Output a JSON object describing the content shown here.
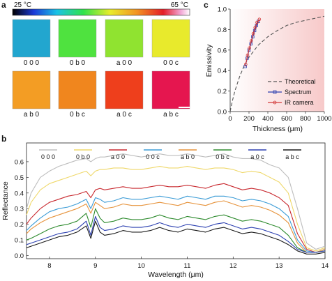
{
  "panel_a": {
    "label": "a",
    "colorbar": {
      "min_label": "25 °C",
      "max_label": "65 °C"
    },
    "samples": [
      {
        "code": "0 0 0",
        "color": "#22a6cf"
      },
      {
        "code": "0 b 0",
        "color": "#4fe23f"
      },
      {
        "code": "a 0 0",
        "color": "#90e330"
      },
      {
        "code": "0 0 c",
        "color": "#e8ea2c"
      },
      {
        "code": "a b 0",
        "color": "#f39d24"
      },
      {
        "code": "0 b c",
        "color": "#f0861e"
      },
      {
        "code": "a 0 c",
        "color": "#ee3f1c"
      },
      {
        "code": "a b c",
        "color": "#e5164f"
      }
    ]
  },
  "chart_data": [
    {
      "panel": "c",
      "type": "line",
      "xlabel": "Thickness (μm)",
      "ylabel": "Emissivity",
      "xlim": [
        0,
        1000
      ],
      "ylim": [
        0,
        1.0
      ],
      "xticks": [
        "0",
        "200",
        "400",
        "600",
        "800",
        "1000"
      ],
      "yticks": [
        "0.0",
        "0.2",
        "0.4",
        "0.6",
        "0.8",
        "1.0"
      ],
      "legend_position": "bottom-right",
      "series": [
        {
          "name": "Theoretical",
          "color": "#555555",
          "style": "dashed",
          "x": [
            0,
            25,
            50,
            100,
            150,
            200,
            300,
            400,
            500,
            600,
            700,
            800,
            900,
            1000
          ],
          "y": [
            0,
            0.11,
            0.2,
            0.34,
            0.45,
            0.53,
            0.65,
            0.73,
            0.79,
            0.84,
            0.87,
            0.89,
            0.91,
            0.93
          ]
        },
        {
          "name": "Spectrum",
          "color": "#2b3fb0",
          "marker": "square",
          "x": [
            160,
            180,
            200,
            220,
            240,
            260,
            280,
            300
          ],
          "y": [
            0.44,
            0.52,
            0.6,
            0.66,
            0.73,
            0.79,
            0.84,
            0.88
          ]
        },
        {
          "name": "IR camera",
          "color": "#d23a3a",
          "marker": "circle",
          "x": [
            165,
            185,
            205,
            225,
            245,
            265,
            285,
            310
          ],
          "y": [
            0.46,
            0.55,
            0.62,
            0.69,
            0.76,
            0.82,
            0.87,
            0.9
          ]
        }
      ]
    },
    {
      "panel": "b",
      "type": "line",
      "xlabel": "Wavelength (μm)",
      "ylabel": "Reflectance",
      "xlim": [
        7.5,
        14
      ],
      "ylim": [
        -0.02,
        0.72
      ],
      "xticks": [
        "8",
        "9",
        "10",
        "11",
        "12",
        "13",
        "14"
      ],
      "yticks": [
        "0.0",
        "0.1",
        "0.2",
        "0.3",
        "0.4",
        "0.5",
        "0.6"
      ],
      "legend_position": "top",
      "x": [
        7.5,
        7.6,
        7.8,
        8.0,
        8.2,
        8.4,
        8.6,
        8.8,
        8.9,
        9.0,
        9.1,
        9.2,
        9.4,
        9.6,
        9.8,
        10.0,
        10.2,
        10.4,
        10.6,
        10.8,
        11.0,
        11.2,
        11.4,
        11.6,
        11.8,
        12.0,
        12.2,
        12.4,
        12.6,
        12.8,
        13.0,
        13.2,
        13.4,
        13.6,
        13.8,
        14.0
      ],
      "series": [
        {
          "name": "0 0 0",
          "color": "#bdbdbd",
          "values": [
            0.3,
            0.4,
            0.5,
            0.54,
            0.57,
            0.59,
            0.61,
            0.62,
            0.6,
            0.62,
            0.63,
            0.63,
            0.64,
            0.65,
            0.64,
            0.63,
            0.64,
            0.65,
            0.64,
            0.64,
            0.65,
            0.64,
            0.63,
            0.64,
            0.65,
            0.63,
            0.62,
            0.62,
            0.61,
            0.58,
            0.56,
            0.5,
            0.3,
            0.08,
            0.04,
            0.06
          ]
        },
        {
          "name": "0 b 0",
          "color": "#efd86a",
          "values": [
            0.26,
            0.34,
            0.42,
            0.46,
            0.48,
            0.5,
            0.52,
            0.54,
            0.51,
            0.54,
            0.55,
            0.55,
            0.56,
            0.56,
            0.55,
            0.55,
            0.56,
            0.57,
            0.56,
            0.56,
            0.57,
            0.56,
            0.55,
            0.56,
            0.56,
            0.55,
            0.53,
            0.54,
            0.53,
            0.5,
            0.47,
            0.4,
            0.2,
            0.05,
            0.03,
            0.05
          ]
        },
        {
          "name": "a 0 0",
          "color": "#c8282e",
          "values": [
            0.2,
            0.24,
            0.3,
            0.34,
            0.36,
            0.38,
            0.39,
            0.41,
            0.37,
            0.42,
            0.43,
            0.42,
            0.43,
            0.44,
            0.43,
            0.43,
            0.44,
            0.45,
            0.44,
            0.44,
            0.45,
            0.44,
            0.43,
            0.45,
            0.46,
            0.44,
            0.42,
            0.43,
            0.42,
            0.4,
            0.37,
            0.32,
            0.14,
            0.04,
            0.02,
            0.04
          ]
        },
        {
          "name": "0 0 c",
          "color": "#3a9bd6",
          "values": [
            0.16,
            0.19,
            0.24,
            0.28,
            0.3,
            0.31,
            0.33,
            0.36,
            0.3,
            0.37,
            0.36,
            0.34,
            0.35,
            0.37,
            0.36,
            0.36,
            0.37,
            0.38,
            0.37,
            0.36,
            0.38,
            0.37,
            0.36,
            0.38,
            0.38,
            0.37,
            0.35,
            0.36,
            0.35,
            0.33,
            0.3,
            0.25,
            0.1,
            0.03,
            0.02,
            0.04
          ]
        },
        {
          "name": "a b 0",
          "color": "#e6923a",
          "values": [
            0.14,
            0.17,
            0.21,
            0.24,
            0.26,
            0.28,
            0.3,
            0.33,
            0.27,
            0.34,
            0.32,
            0.3,
            0.31,
            0.33,
            0.32,
            0.32,
            0.33,
            0.34,
            0.33,
            0.32,
            0.34,
            0.33,
            0.32,
            0.34,
            0.35,
            0.33,
            0.31,
            0.32,
            0.31,
            0.29,
            0.26,
            0.21,
            0.08,
            0.02,
            0.02,
            0.04
          ]
        },
        {
          "name": "0 b c",
          "color": "#2e8b2e",
          "values": [
            0.1,
            0.11,
            0.14,
            0.17,
            0.19,
            0.2,
            0.22,
            0.27,
            0.18,
            0.3,
            0.24,
            0.21,
            0.22,
            0.24,
            0.23,
            0.23,
            0.24,
            0.26,
            0.24,
            0.23,
            0.25,
            0.24,
            0.23,
            0.25,
            0.26,
            0.24,
            0.22,
            0.23,
            0.22,
            0.2,
            0.18,
            0.13,
            0.05,
            0.02,
            0.02,
            0.03
          ]
        },
        {
          "name": "a 0 c",
          "color": "#2b3fb0",
          "values": [
            0.07,
            0.08,
            0.1,
            0.12,
            0.14,
            0.15,
            0.17,
            0.22,
            0.13,
            0.25,
            0.18,
            0.16,
            0.17,
            0.19,
            0.18,
            0.18,
            0.19,
            0.21,
            0.19,
            0.18,
            0.2,
            0.19,
            0.18,
            0.2,
            0.21,
            0.19,
            0.17,
            0.18,
            0.17,
            0.15,
            0.13,
            0.09,
            0.04,
            0.02,
            0.02,
            0.03
          ]
        },
        {
          "name": "a b c",
          "color": "#1a1a1a",
          "values": [
            0.05,
            0.06,
            0.08,
            0.1,
            0.12,
            0.13,
            0.15,
            0.19,
            0.11,
            0.22,
            0.15,
            0.13,
            0.14,
            0.16,
            0.15,
            0.15,
            0.16,
            0.18,
            0.16,
            0.15,
            0.17,
            0.16,
            0.15,
            0.17,
            0.18,
            0.16,
            0.14,
            0.15,
            0.14,
            0.12,
            0.1,
            0.07,
            0.03,
            0.01,
            0.01,
            0.02
          ]
        }
      ]
    }
  ]
}
